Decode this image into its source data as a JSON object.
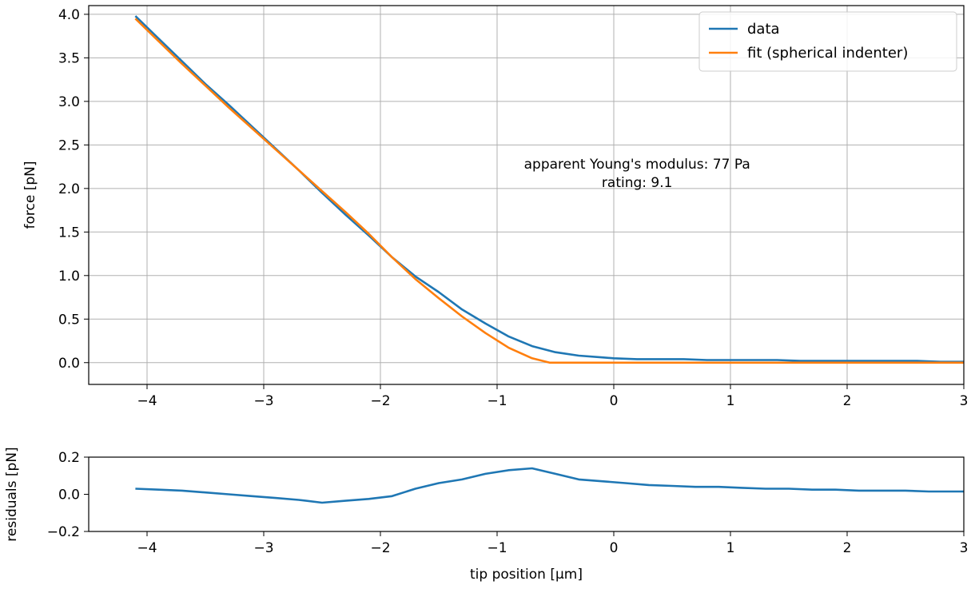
{
  "chart_data": [
    {
      "type": "line",
      "xlabel": "",
      "ylabel": "force [pN]",
      "xlim": [
        -4.5,
        3.0
      ],
      "ylim": [
        -0.25,
        4.1
      ],
      "xticks": [
        -4,
        -3,
        -2,
        -1,
        0,
        1,
        2,
        3
      ],
      "xtick_labels": [
        "−4",
        "−3",
        "−2",
        "−1",
        "0",
        "1",
        "2",
        "3"
      ],
      "yticks": [
        0.0,
        0.5,
        1.0,
        1.5,
        2.0,
        2.5,
        3.0,
        3.5,
        4.0
      ],
      "ytick_labels": [
        "0.0",
        "0.5",
        "1.0",
        "1.5",
        "2.0",
        "2.5",
        "3.0",
        "3.5",
        "4.0"
      ],
      "grid": true,
      "legend": "top-right",
      "annotations": [
        {
          "lines": [
            "apparent Young's modulus: 77 Pa",
            "rating: 9.1"
          ],
          "x": 0.2,
          "y": 2.2
        }
      ],
      "series": [
        {
          "name": "data",
          "color": "#1f77b4",
          "x": [
            -4.1,
            -3.9,
            -3.7,
            -3.5,
            -3.3,
            -3.1,
            -2.9,
            -2.7,
            -2.5,
            -2.3,
            -2.1,
            -1.9,
            -1.7,
            -1.5,
            -1.3,
            -1.1,
            -0.9,
            -0.7,
            -0.5,
            -0.3,
            -0.1,
            0.0,
            0.2,
            0.4,
            0.6,
            0.8,
            1.0,
            1.2,
            1.4,
            1.6,
            1.8,
            2.0,
            2.2,
            2.4,
            2.6,
            2.8,
            3.0
          ],
          "y": [
            3.98,
            3.72,
            3.46,
            3.2,
            2.96,
            2.71,
            2.46,
            2.21,
            1.95,
            1.7,
            1.46,
            1.21,
            0.99,
            0.81,
            0.61,
            0.45,
            0.3,
            0.19,
            0.12,
            0.08,
            0.06,
            0.05,
            0.04,
            0.04,
            0.04,
            0.03,
            0.03,
            0.03,
            0.03,
            0.02,
            0.02,
            0.02,
            0.02,
            0.02,
            0.02,
            0.01,
            0.01
          ]
        },
        {
          "name": "fit (spherical indenter)",
          "color": "#ff7f0e",
          "x": [
            -4.1,
            -3.9,
            -3.7,
            -3.5,
            -3.3,
            -3.1,
            -2.9,
            -2.7,
            -2.5,
            -2.3,
            -2.1,
            -1.9,
            -1.7,
            -1.5,
            -1.3,
            -1.1,
            -0.9,
            -0.7,
            -0.55,
            -0.3,
            0.0,
            0.5,
            1.0,
            2.0,
            3.0
          ],
          "y": [
            3.95,
            3.69,
            3.43,
            3.18,
            2.93,
            2.69,
            2.45,
            2.21,
            1.97,
            1.73,
            1.48,
            1.21,
            0.96,
            0.74,
            0.53,
            0.34,
            0.17,
            0.05,
            0.0,
            0.0,
            0.0,
            0.0,
            0.0,
            0.0,
            0.0
          ]
        }
      ]
    },
    {
      "type": "line",
      "xlabel": "tip position [μm]",
      "ylabel": "residuals [pN]",
      "xlim": [
        -4.5,
        3.0
      ],
      "ylim": [
        -0.2,
        0.2
      ],
      "xticks": [
        -4,
        -3,
        -2,
        -1,
        0,
        1,
        2,
        3
      ],
      "xtick_labels": [
        "−4",
        "−3",
        "−2",
        "−1",
        "0",
        "1",
        "2",
        "3"
      ],
      "yticks": [
        -0.2,
        0.0,
        0.2
      ],
      "ytick_labels": [
        "−0.2",
        "0.0",
        "0.2"
      ],
      "grid": false,
      "series": [
        {
          "name": "",
          "color": "#1f77b4",
          "x": [
            -4.1,
            -3.9,
            -3.7,
            -3.5,
            -3.3,
            -3.1,
            -2.9,
            -2.7,
            -2.5,
            -2.3,
            -2.1,
            -1.9,
            -1.7,
            -1.5,
            -1.3,
            -1.1,
            -0.9,
            -0.7,
            -0.5,
            -0.3,
            -0.1,
            0.1,
            0.3,
            0.5,
            0.7,
            0.9,
            1.1,
            1.3,
            1.5,
            1.7,
            1.9,
            2.1,
            2.3,
            2.5,
            2.7,
            2.9,
            3.0
          ],
          "y": [
            0.03,
            0.025,
            0.02,
            0.01,
            0.0,
            -0.01,
            -0.02,
            -0.03,
            -0.045,
            -0.035,
            -0.025,
            -0.01,
            0.03,
            0.06,
            0.08,
            0.11,
            0.13,
            0.14,
            0.11,
            0.08,
            0.07,
            0.06,
            0.05,
            0.045,
            0.04,
            0.04,
            0.035,
            0.03,
            0.03,
            0.025,
            0.025,
            0.02,
            0.02,
            0.02,
            0.015,
            0.015,
            0.015
          ]
        }
      ]
    }
  ]
}
